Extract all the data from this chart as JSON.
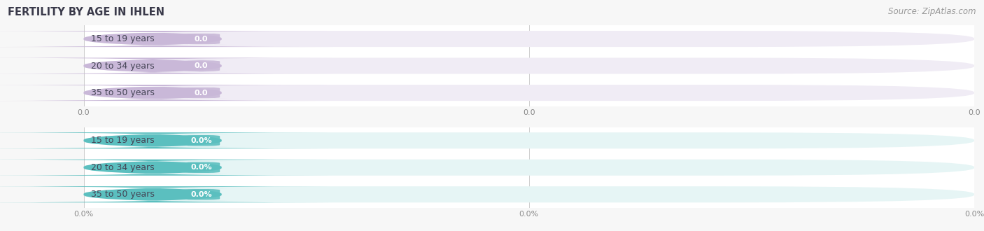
{
  "title": "FERTILITY BY AGE IN IHLEN",
  "source": "Source: ZipAtlas.com",
  "top_chart": {
    "categories": [
      "15 to 19 years",
      "20 to 34 years",
      "35 to 50 years"
    ],
    "values": [
      0.0,
      0.0,
      0.0
    ],
    "bar_color": "#c9b8d8",
    "bar_bg_color": "#f0ecf5",
    "value_label": "0.0",
    "xticklabels": [
      "0.0",
      "0.0",
      "0.0"
    ]
  },
  "bottom_chart": {
    "categories": [
      "15 to 19 years",
      "20 to 34 years",
      "35 to 50 years"
    ],
    "values": [
      0.0,
      0.0,
      0.0
    ],
    "bar_color": "#5bbfbf",
    "bar_bg_color": "#e6f5f5",
    "value_label": "0.0%",
    "xticklabels": [
      "0.0%",
      "0.0%",
      "0.0%"
    ]
  },
  "bg_color": "#f7f7f7",
  "plot_bg_color": "#ffffff",
  "title_fontsize": 10.5,
  "cat_fontsize": 9,
  "val_fontsize": 8,
  "source_fontsize": 8.5,
  "tick_fontsize": 8
}
